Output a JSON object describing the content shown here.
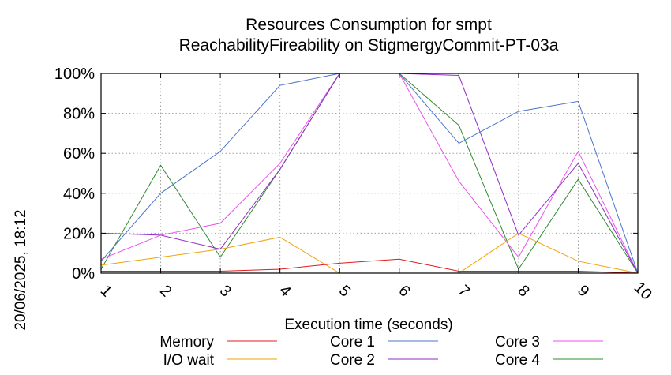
{
  "chart_data": {
    "type": "line",
    "title": "Resources Consumption for smpt",
    "subtitle": "ReachabilityFireability on StigmergyCommit-PT-03a",
    "xlabel": "Execution time (seconds)",
    "ylabel": "",
    "x": [
      1,
      2,
      3,
      4,
      5,
      6,
      7,
      8,
      9,
      10
    ],
    "xlim": [
      1,
      10
    ],
    "ylim": [
      0,
      100
    ],
    "y_ticks": [
      "0%",
      "20%",
      "40%",
      "60%",
      "80%",
      "100%"
    ],
    "x_ticks": [
      "1",
      "2",
      "3",
      "4",
      "5",
      "6",
      "7",
      "8",
      "9",
      "10"
    ],
    "grid": true,
    "legend_position": "bottom",
    "series": [
      {
        "name": "Memory",
        "color": "#e41a1c",
        "values": [
          1,
          1,
          1,
          2,
          5,
          7,
          1,
          1,
          1,
          0
        ]
      },
      {
        "name": "I/O wait",
        "color": "#f0a30a",
        "values": [
          4,
          8,
          12,
          18,
          0,
          0,
          0,
          20,
          6,
          0
        ]
      },
      {
        "name": "Core 1",
        "color": "#4a74c9",
        "values": [
          6,
          40,
          61,
          94,
          100,
          100,
          65,
          81,
          86,
          0
        ]
      },
      {
        "name": "Core 2",
        "color": "#8e2ec7",
        "values": [
          20,
          19,
          12,
          52,
          100,
          100,
          99,
          19,
          55,
          0
        ]
      },
      {
        "name": "Core 3",
        "color": "#ec4fec",
        "values": [
          7,
          19,
          25,
          55,
          100,
          100,
          46,
          8,
          61,
          0
        ]
      },
      {
        "name": "Core 4",
        "color": "#2e8b2e",
        "values": [
          2,
          54,
          8,
          52,
          100,
          100,
          74,
          2,
          47,
          0
        ]
      }
    ]
  },
  "timestamp": "20/06/2025, 18:12"
}
